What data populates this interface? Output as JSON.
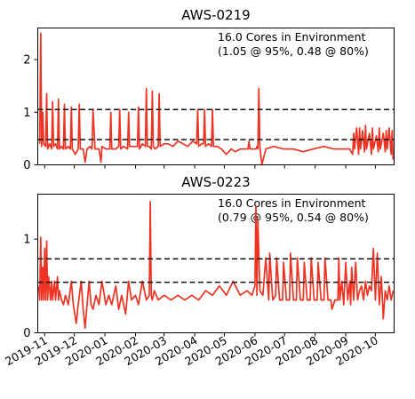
{
  "chart_data": [
    {
      "type": "line",
      "title": "AWS-0219",
      "annotation_lines": [
        "16.0 Cores in Environment",
        "(1.05 @ 95%, 0.48 @ 80%)"
      ],
      "xlabel": "",
      "ylabel": "",
      "yticks": [
        0,
        1,
        2
      ],
      "ylim": [
        0,
        2.6
      ],
      "xlim": [
        "2019-10-25",
        "2020-10-20"
      ],
      "reference_lines": [
        1.05,
        0.48
      ],
      "grid": false,
      "colors": {
        "series": "#ee3322",
        "reference": "#111111"
      },
      "series": [
        {
          "x": [
            "2019-10-27",
            "2019-10-28",
            "2019-10-29",
            "2019-10-30",
            "2019-10-31",
            "2019-11-02",
            "2019-11-03",
            "2019-11-04",
            "2019-11-06",
            "2019-11-08",
            "2019-11-09",
            "2019-11-10",
            "2019-11-12",
            "2019-11-14",
            "2019-11-15",
            "2019-11-16",
            "2019-11-18",
            "2019-11-20",
            "2019-11-21",
            "2019-11-22",
            "2019-11-25",
            "2019-11-27",
            "2019-11-28",
            "2019-11-29",
            "2019-12-02",
            "2019-12-05",
            "2019-12-06",
            "2019-12-07",
            "2019-12-10",
            "2019-12-12",
            "2019-12-14",
            "2019-12-17",
            "2019-12-19",
            "2019-12-20",
            "2019-12-22",
            "2019-12-26",
            "2019-12-28",
            "2019-12-29",
            "2020-01-02",
            "2020-01-06",
            "2020-01-07",
            "2020-01-08",
            "2020-01-12",
            "2020-01-15",
            "2020-01-16",
            "2020-01-17",
            "2020-01-20",
            "2020-01-24",
            "2020-01-25",
            "2020-01-26",
            "2020-01-30",
            "2020-02-03",
            "2020-02-04",
            "2020-02-05",
            "2020-02-08",
            "2020-02-11",
            "2020-02-12",
            "2020-02-13",
            "2020-02-15",
            "2020-02-17",
            "2020-02-18",
            "2020-02-19",
            "2020-02-21",
            "2020-02-24",
            "2020-02-25",
            "2020-02-26",
            "2020-03-01",
            "2020-03-05",
            "2020-03-10",
            "2020-03-15",
            "2020-03-20",
            "2020-03-25",
            "2020-03-30",
            "2020-04-03",
            "2020-04-04",
            "2020-04-05",
            "2020-04-08",
            "2020-04-10",
            "2020-04-11",
            "2020-04-12",
            "2020-04-15",
            "2020-04-18",
            "2020-04-19",
            "2020-04-20",
            "2020-04-24",
            "2020-04-28",
            "2020-05-03",
            "2020-05-08",
            "2020-05-12",
            "2020-05-17",
            "2020-05-22",
            "2020-05-25",
            "2020-05-26",
            "2020-05-27",
            "2020-05-31",
            "2020-06-02",
            "2020-06-03",
            "2020-06-04",
            "2020-06-05",
            "2020-06-06",
            "2020-06-08",
            "2020-06-12",
            "2020-06-20",
            "2020-06-30",
            "2020-07-10",
            "2020-07-20",
            "2020-07-30",
            "2020-08-10",
            "2020-08-20",
            "2020-08-30",
            "2020-09-05",
            "2020-09-08",
            "2020-09-09",
            "2020-09-10",
            "2020-09-12",
            "2020-09-14",
            "2020-09-15",
            "2020-09-16",
            "2020-09-18",
            "2020-09-20",
            "2020-09-21",
            "2020-09-22",
            "2020-09-25",
            "2020-09-27",
            "2020-09-28",
            "2020-09-29",
            "2020-10-02",
            "2020-10-04",
            "2020-10-05",
            "2020-10-06",
            "2020-10-09",
            "2020-10-11",
            "2020-10-12",
            "2020-10-13",
            "2020-10-15",
            "2020-10-17",
            "2020-10-18",
            "2020-10-19"
          ],
          "y": [
            0.4,
            2.5,
            0.35,
            1.0,
            0.4,
            0.35,
            1.35,
            0.3,
            0.4,
            0.3,
            1.2,
            0.35,
            0.4,
            0.3,
            1.25,
            0.3,
            0.35,
            0.3,
            1.15,
            0.3,
            0.35,
            0.3,
            1.1,
            0.3,
            0.2,
            0.3,
            1.15,
            0.3,
            0.3,
            0.05,
            0.3,
            0.35,
            0.3,
            1.05,
            0.3,
            0.3,
            0.05,
            0.35,
            0.3,
            0.3,
            1.0,
            0.3,
            0.3,
            0.35,
            1.05,
            0.3,
            0.35,
            0.3,
            1.0,
            0.35,
            0.35,
            0.35,
            1.1,
            0.3,
            0.4,
            0.35,
            1.45,
            0.35,
            0.35,
            0.3,
            1.4,
            0.35,
            0.3,
            0.35,
            1.35,
            0.35,
            0.4,
            0.4,
            0.35,
            0.45,
            0.4,
            0.35,
            0.45,
            0.4,
            1.05,
            0.35,
            0.4,
            0.4,
            1.05,
            0.35,
            0.4,
            0.35,
            1.05,
            0.35,
            0.35,
            0.3,
            0.2,
            0.3,
            0.25,
            0.3,
            0.3,
            0.3,
            0.45,
            0.3,
            0.3,
            0.3,
            0.35,
            0.3,
            1.45,
            0.35,
            0.0,
            0.3,
            0.35,
            0.3,
            0.3,
            0.25,
            0.3,
            0.35,
            0.3,
            0.3,
            0.3,
            0.2,
            0.6,
            0.3,
            0.7,
            0.2,
            0.7,
            0.3,
            0.65,
            0.25,
            0.75,
            0.3,
            0.6,
            0.2,
            0.7,
            0.3,
            0.55,
            0.25,
            0.7,
            0.3,
            0.6,
            0.25,
            0.65,
            0.3,
            0.7,
            0.2,
            0.65,
            0.1
          ]
        }
      ]
    },
    {
      "type": "line",
      "title": "AWS-0223",
      "annotation_lines": [
        "16.0 Cores in Environment",
        "(0.79 @ 95%, 0.54 @ 80%)"
      ],
      "xlabel": "",
      "ylabel": "",
      "yticks": [
        0,
        1
      ],
      "ylim": [
        0,
        1.48
      ],
      "xlim": [
        "2019-10-25",
        "2020-10-20"
      ],
      "xticks": [
        "2019-11",
        "2019-12",
        "2020-01",
        "2020-02",
        "2020-03",
        "2020-04",
        "2020-05",
        "2020-06",
        "2020-07",
        "2020-08",
        "2020-09",
        "2020-10"
      ],
      "reference_lines": [
        0.79,
        0.54
      ],
      "grid": false,
      "colors": {
        "series": "#ee3322",
        "reference": "#111111"
      },
      "series": [
        {
          "x": [
            "2019-10-26",
            "2019-10-27",
            "2019-10-28",
            "2019-10-29",
            "2019-10-30",
            "2019-10-31",
            "2019-11-01",
            "2019-11-02",
            "2019-11-03",
            "2019-11-04",
            "2019-11-05",
            "2019-11-07",
            "2019-11-08",
            "2019-11-09",
            "2019-11-11",
            "2019-11-12",
            "2019-11-14",
            "2019-11-15",
            "2019-11-16",
            "2019-11-18",
            "2019-11-20",
            "2019-11-22",
            "2019-11-25",
            "2019-11-28",
            "2019-11-30",
            "2019-12-03",
            "2019-12-05",
            "2019-12-08",
            "2019-12-10",
            "2019-12-12",
            "2019-12-14",
            "2019-12-16",
            "2019-12-18",
            "2019-12-20",
            "2019-12-23",
            "2019-12-26",
            "2019-12-29",
            "2020-01-02",
            "2020-01-05",
            "2020-01-08",
            "2020-01-12",
            "2020-01-15",
            "2020-01-18",
            "2020-01-22",
            "2020-01-25",
            "2020-01-28",
            "2020-02-01",
            "2020-02-04",
            "2020-02-08",
            "2020-02-12",
            "2020-02-15",
            "2020-02-16",
            "2020-02-17",
            "2020-02-18",
            "2020-02-20",
            "2020-02-24",
            "2020-03-01",
            "2020-03-08",
            "2020-03-15",
            "2020-03-22",
            "2020-03-29",
            "2020-04-05",
            "2020-04-12",
            "2020-04-19",
            "2020-04-26",
            "2020-05-03",
            "2020-05-10",
            "2020-05-17",
            "2020-05-24",
            "2020-05-29",
            "2020-06-01",
            "2020-06-02",
            "2020-06-03",
            "2020-06-04",
            "2020-06-06",
            "2020-06-09",
            "2020-06-12",
            "2020-06-15",
            "2020-06-16",
            "2020-06-19",
            "2020-06-22",
            "2020-06-23",
            "2020-06-26",
            "2020-06-29",
            "2020-06-30",
            "2020-07-03",
            "2020-07-06",
            "2020-07-07",
            "2020-07-10",
            "2020-07-13",
            "2020-07-14",
            "2020-07-17",
            "2020-07-20",
            "2020-07-21",
            "2020-07-24",
            "2020-07-27",
            "2020-07-28",
            "2020-07-31",
            "2020-08-03",
            "2020-08-04",
            "2020-08-07",
            "2020-08-10",
            "2020-08-11",
            "2020-08-14",
            "2020-08-17",
            "2020-08-18",
            "2020-08-21",
            "2020-08-24",
            "2020-08-25",
            "2020-08-26",
            "2020-08-28",
            "2020-08-30",
            "2020-09-01",
            "2020-09-03",
            "2020-09-05",
            "2020-09-06",
            "2020-09-07",
            "2020-09-09",
            "2020-09-11",
            "2020-09-13",
            "2020-09-15",
            "2020-09-17",
            "2020-09-19",
            "2020-09-21",
            "2020-09-23",
            "2020-09-25",
            "2020-09-27",
            "2020-09-29",
            "2020-10-01",
            "2020-10-03",
            "2020-10-05",
            "2020-10-07",
            "2020-10-09",
            "2020-10-11",
            "2020-10-13",
            "2020-10-15",
            "2020-10-17",
            "2020-10-19"
          ],
          "y": [
            0.5,
            0.35,
            1.02,
            0.35,
            0.7,
            0.35,
            0.9,
            0.35,
            0.98,
            0.35,
            0.6,
            0.35,
            0.55,
            0.35,
            0.55,
            0.35,
            0.6,
            0.35,
            0.45,
            0.35,
            0.3,
            0.4,
            0.3,
            0.55,
            0.3,
            0.1,
            0.3,
            0.55,
            0.25,
            0.05,
            0.3,
            0.55,
            0.3,
            0.25,
            0.4,
            0.3,
            0.55,
            0.3,
            0.4,
            0.3,
            0.5,
            0.25,
            0.4,
            0.2,
            0.55,
            0.35,
            0.4,
            0.3,
            0.55,
            0.35,
            0.4,
            1.4,
            0.4,
            0.35,
            0.45,
            0.35,
            0.4,
            0.35,
            0.4,
            0.35,
            0.4,
            0.35,
            0.45,
            0.4,
            0.5,
            0.4,
            0.55,
            0.4,
            0.45,
            0.4,
            0.5,
            1.35,
            0.4,
            1.2,
            0.45,
            0.4,
            0.8,
            0.35,
            0.85,
            0.35,
            0.4,
            0.8,
            0.35,
            0.35,
            0.75,
            0.35,
            0.35,
            0.85,
            0.35,
            0.35,
            0.8,
            0.35,
            0.35,
            0.75,
            0.35,
            0.35,
            0.8,
            0.35,
            0.35,
            0.75,
            0.35,
            0.35,
            0.8,
            0.35,
            0.35,
            0.25,
            0.35,
            0.35,
            0.8,
            0.35,
            0.55,
            0.3,
            0.75,
            0.35,
            0.55,
            0.3,
            0.7,
            0.35,
            0.75,
            0.35,
            0.45,
            0.5,
            0.35,
            0.55,
            0.4,
            0.5,
            0.45,
            0.9,
            0.35,
            0.85,
            0.3,
            0.6,
            0.15,
            0.45,
            0.35,
            0.5,
            0.35,
            0.45
          ]
        }
      ]
    }
  ]
}
